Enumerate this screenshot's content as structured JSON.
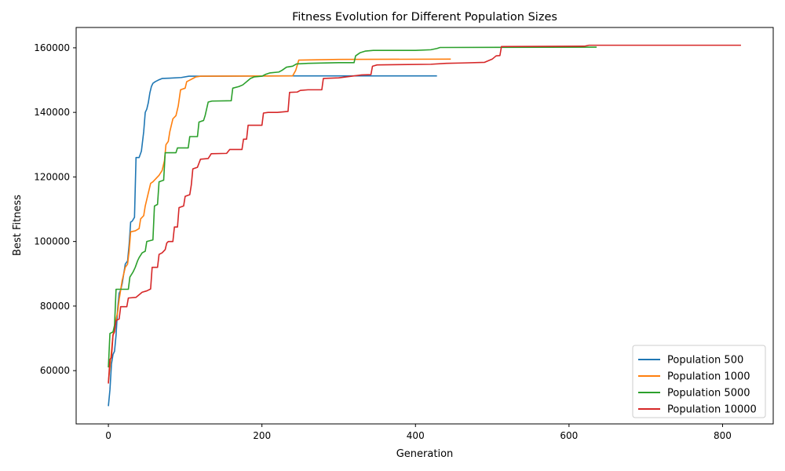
{
  "chart_data": {
    "type": "line",
    "title": "Fitness Evolution for Different Population Sizes",
    "xlabel": "Generation",
    "ylabel": "Best Fitness",
    "xlim": [
      -42,
      866
    ],
    "ylim": [
      43500,
      166300
    ],
    "xticks": [
      0,
      200,
      400,
      600,
      800
    ],
    "yticks": [
      60000,
      80000,
      100000,
      120000,
      140000,
      160000
    ],
    "grid": false,
    "legend_position": "lower-right",
    "series": [
      {
        "name": "Population 500",
        "color": "#1f77b4",
        "points": [
          [
            0,
            49000
          ],
          [
            2,
            54000
          ],
          [
            4,
            62000
          ],
          [
            6,
            65000
          ],
          [
            8,
            66000
          ],
          [
            10,
            71000
          ],
          [
            12,
            79000
          ],
          [
            14,
            84000
          ],
          [
            16,
            85000
          ],
          [
            18,
            87000
          ],
          [
            20,
            90000
          ],
          [
            22,
            93000
          ],
          [
            25,
            94000
          ],
          [
            27,
            99000
          ],
          [
            29,
            106000
          ],
          [
            31,
            106300
          ],
          [
            34,
            107500
          ],
          [
            36,
            126000
          ],
          [
            40,
            126000
          ],
          [
            43,
            128000
          ],
          [
            46,
            134000
          ],
          [
            48,
            140000
          ],
          [
            50,
            141000
          ],
          [
            52,
            143000
          ],
          [
            54,
            146000
          ],
          [
            56,
            148000
          ],
          [
            58,
            149000
          ],
          [
            61,
            149500
          ],
          [
            65,
            150000
          ],
          [
            70,
            150500
          ],
          [
            80,
            150600
          ],
          [
            95,
            150800
          ],
          [
            105,
            151200
          ],
          [
            230,
            151300
          ],
          [
            428,
            151300
          ]
        ]
      },
      {
        "name": "Population 1000",
        "color": "#ff7f0e",
        "points": [
          [
            0,
            56500
          ],
          [
            2,
            61000
          ],
          [
            4,
            66000
          ],
          [
            6,
            71000
          ],
          [
            8,
            74000
          ],
          [
            10,
            76000
          ],
          [
            12,
            78000
          ],
          [
            14,
            82000
          ],
          [
            16,
            85000
          ],
          [
            18,
            88000
          ],
          [
            20,
            90000
          ],
          [
            22,
            92000
          ],
          [
            25,
            93000
          ],
          [
            27,
            97000
          ],
          [
            29,
            103000
          ],
          [
            35,
            103300
          ],
          [
            40,
            104000
          ],
          [
            42,
            107000
          ],
          [
            46,
            108000
          ],
          [
            48,
            111000
          ],
          [
            52,
            115000
          ],
          [
            55,
            118000
          ],
          [
            58,
            118500
          ],
          [
            62,
            119500
          ],
          [
            66,
            120500
          ],
          [
            70,
            122000
          ],
          [
            73,
            125000
          ],
          [
            75,
            130000
          ],
          [
            78,
            131000
          ],
          [
            80,
            134000
          ],
          [
            84,
            138000
          ],
          [
            88,
            139000
          ],
          [
            91,
            142000
          ],
          [
            94,
            147000
          ],
          [
            100,
            147500
          ],
          [
            102,
            149500
          ],
          [
            106,
            150000
          ],
          [
            110,
            150500
          ],
          [
            114,
            151000
          ],
          [
            120,
            151200
          ],
          [
            240,
            151300
          ],
          [
            244,
            153000
          ],
          [
            248,
            156200
          ],
          [
            300,
            156400
          ],
          [
            446,
            156500
          ]
        ]
      },
      {
        "name": "Population 5000",
        "color": "#2ca02c",
        "points": [
          [
            0,
            61000
          ],
          [
            2,
            71500
          ],
          [
            6,
            72000
          ],
          [
            8,
            74000
          ],
          [
            10,
            85200
          ],
          [
            26,
            85200
          ],
          [
            28,
            89000
          ],
          [
            32,
            90500
          ],
          [
            35,
            92000
          ],
          [
            38,
            94000
          ],
          [
            40,
            95000
          ],
          [
            44,
            96500
          ],
          [
            48,
            97000
          ],
          [
            50,
            100000
          ],
          [
            58,
            100500
          ],
          [
            60,
            111000
          ],
          [
            64,
            111500
          ],
          [
            66,
            118500
          ],
          [
            72,
            119000
          ],
          [
            74,
            127500
          ],
          [
            88,
            127500
          ],
          [
            90,
            129000
          ],
          [
            104,
            129000
          ],
          [
            106,
            132500
          ],
          [
            116,
            132500
          ],
          [
            118,
            137000
          ],
          [
            124,
            137500
          ],
          [
            126,
            139000
          ],
          [
            130,
            143200
          ],
          [
            135,
            143500
          ],
          [
            160,
            143600
          ],
          [
            162,
            147500
          ],
          [
            170,
            148000
          ],
          [
            175,
            148500
          ],
          [
            180,
            149500
          ],
          [
            185,
            150500
          ],
          [
            190,
            151000
          ],
          [
            200,
            151200
          ],
          [
            205,
            151800
          ],
          [
            210,
            152200
          ],
          [
            222,
            152500
          ],
          [
            226,
            153000
          ],
          [
            232,
            154000
          ],
          [
            240,
            154300
          ],
          [
            245,
            155000
          ],
          [
            260,
            155200
          ],
          [
            300,
            155400
          ],
          [
            320,
            155400
          ],
          [
            322,
            157500
          ],
          [
            328,
            158500
          ],
          [
            335,
            159000
          ],
          [
            345,
            159200
          ],
          [
            400,
            159200
          ],
          [
            420,
            159400
          ],
          [
            428,
            159800
          ],
          [
            432,
            160100
          ],
          [
            636,
            160200
          ]
        ]
      },
      {
        "name": "Population 10000",
        "color": "#d62728",
        "points": [
          [
            0,
            56000
          ],
          [
            2,
            63500
          ],
          [
            4,
            64000
          ],
          [
            6,
            71000
          ],
          [
            8,
            72000
          ],
          [
            10,
            75500
          ],
          [
            14,
            76000
          ],
          [
            16,
            79800
          ],
          [
            24,
            79800
          ],
          [
            26,
            82500
          ],
          [
            36,
            82700
          ],
          [
            40,
            83500
          ],
          [
            44,
            84300
          ],
          [
            50,
            84700
          ],
          [
            55,
            85300
          ],
          [
            57,
            92000
          ],
          [
            64,
            92000
          ],
          [
            66,
            96000
          ],
          [
            70,
            96500
          ],
          [
            74,
            97500
          ],
          [
            76,
            99500
          ],
          [
            78,
            100000
          ],
          [
            84,
            100000
          ],
          [
            86,
            104500
          ],
          [
            90,
            104500
          ],
          [
            92,
            110500
          ],
          [
            98,
            111000
          ],
          [
            100,
            114000
          ],
          [
            106,
            114500
          ],
          [
            108,
            117500
          ],
          [
            110,
            122500
          ],
          [
            116,
            123000
          ],
          [
            120,
            125500
          ],
          [
            130,
            125700
          ],
          [
            134,
            127200
          ],
          [
            154,
            127300
          ],
          [
            158,
            128500
          ],
          [
            174,
            128500
          ],
          [
            176,
            131700
          ],
          [
            180,
            131700
          ],
          [
            182,
            136000
          ],
          [
            200,
            136000
          ],
          [
            202,
            139800
          ],
          [
            208,
            140000
          ],
          [
            220,
            140000
          ],
          [
            234,
            140300
          ],
          [
            236,
            146200
          ],
          [
            246,
            146300
          ],
          [
            250,
            146800
          ],
          [
            260,
            147000
          ],
          [
            278,
            147000
          ],
          [
            280,
            150500
          ],
          [
            300,
            150700
          ],
          [
            310,
            151000
          ],
          [
            330,
            151600
          ],
          [
            342,
            151700
          ],
          [
            344,
            154300
          ],
          [
            350,
            154700
          ],
          [
            380,
            154800
          ],
          [
            420,
            154900
          ],
          [
            440,
            155200
          ],
          [
            460,
            155300
          ],
          [
            490,
            155500
          ],
          [
            500,
            156500
          ],
          [
            505,
            157500
          ],
          [
            510,
            157600
          ],
          [
            512,
            160400
          ],
          [
            620,
            160500
          ],
          [
            626,
            160800
          ],
          [
            824,
            160800
          ]
        ]
      }
    ]
  }
}
